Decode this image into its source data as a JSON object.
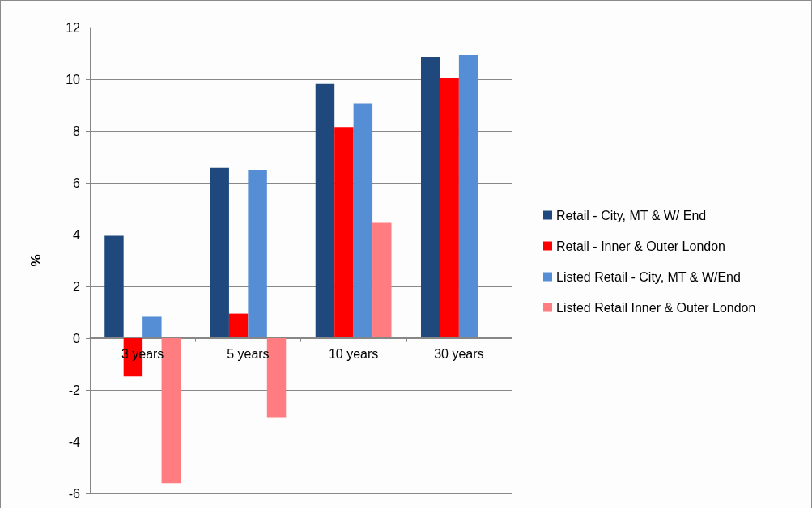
{
  "chart_data": {
    "type": "bar",
    "ylabel": "%",
    "categories": [
      "3 years",
      "5 years",
      "10 years",
      "30 years"
    ],
    "series": [
      {
        "name": "Retail - City, MT & W/ End",
        "color": "#1f497d",
        "values": [
          3.95,
          6.57,
          9.82,
          10.87
        ]
      },
      {
        "name": "Retail - Inner & Outer London",
        "color": "#ff0000",
        "values": [
          -1.48,
          0.95,
          8.15,
          10.03
        ]
      },
      {
        "name": "Listed Retail - City, MT & W/End",
        "color": "#558ed5",
        "values": [
          0.83,
          6.5,
          9.08,
          10.94
        ]
      },
      {
        "name": "Listed Retail Inner & Outer London",
        "color": "#ff7c80",
        "values": [
          -5.6,
          -3.08,
          4.45,
          null
        ]
      }
    ],
    "ylim": [
      -6,
      12
    ],
    "yticks": [
      -6,
      -4,
      -2,
      0,
      2,
      4,
      6,
      8,
      10,
      12
    ],
    "grid": "y",
    "legend": "right"
  }
}
